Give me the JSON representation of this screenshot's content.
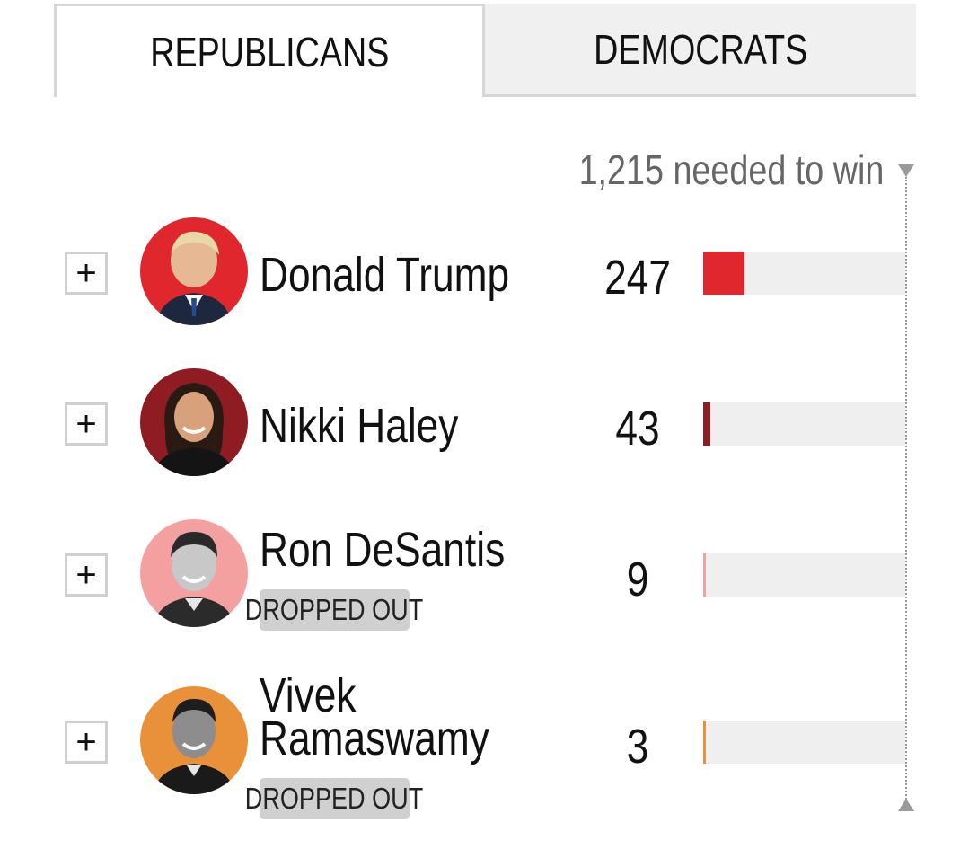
{
  "tabs": [
    {
      "label": "REPUBLICANS",
      "active": true
    },
    {
      "label": "DEMOCRATS",
      "active": false
    }
  ],
  "threshold": {
    "label": "1,215 needed to win",
    "value": 1215
  },
  "expand_symbol": "+",
  "candidates": [
    {
      "name_lines": [
        "Donald Trump"
      ],
      "delegates": "247",
      "status": "",
      "color": "#e0272d",
      "avatar_bg": "#e0272d",
      "bar_fraction": 0.203
    },
    {
      "name_lines": [
        "Nikki Haley"
      ],
      "delegates": "43",
      "status": "",
      "color": "#8e1c22",
      "avatar_bg": "#8e1c22",
      "bar_fraction": 0.035
    },
    {
      "name_lines": [
        "Ron DeSantis"
      ],
      "delegates": "9",
      "status": "DROPPED OUT",
      "color": "#f4a0a0",
      "avatar_bg": "#f4a0a0",
      "bar_fraction": 0.0074
    },
    {
      "name_lines": [
        "Vivek",
        "Ramaswamy"
      ],
      "delegates": "3",
      "status": "DROPPED OUT",
      "color": "#e8913a",
      "avatar_bg": "#e8913a",
      "bar_fraction": 0.0025
    }
  ]
}
